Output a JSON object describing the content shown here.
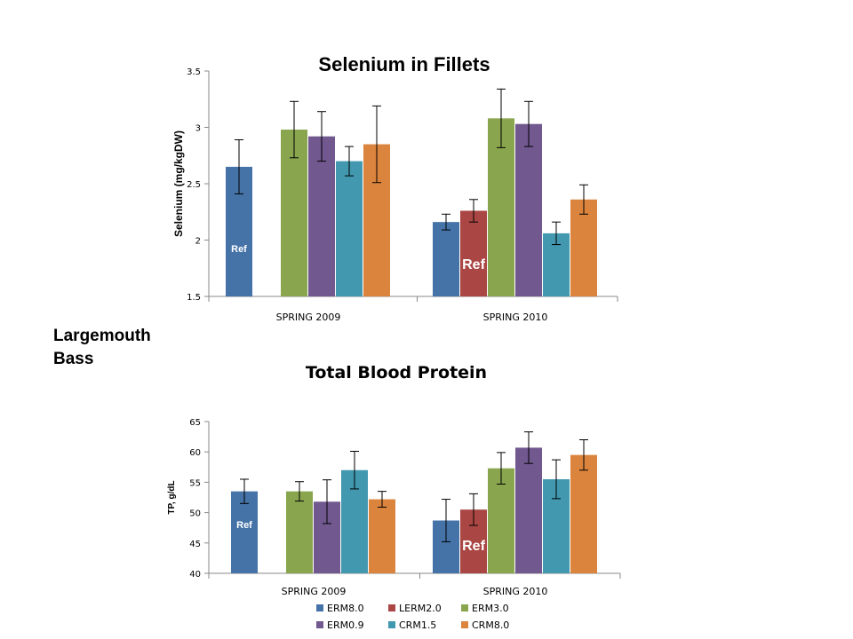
{
  "side_label": {
    "line1": "Largemouth",
    "line2": "Bass"
  },
  "colors": {
    "ERM8.0": "#4572A7",
    "LERM2.0": "#AA4643",
    "ERM3.0": "#89A54E",
    "ERM0.9": "#71588F",
    "CRM1.5": "#4198AF",
    "CRM8.0": "#DB843D"
  },
  "chart_data": [
    {
      "type": "bar",
      "title": "Selenium in Fillets",
      "ylabel": "Selenium  (mg/kgDW)",
      "xlabel": "",
      "categories": [
        "SPRING 2009",
        "SPRING 2010"
      ],
      "ylim": [
        1.5,
        3.5
      ],
      "yticks": [
        "1.5",
        "2",
        "2.5",
        "3",
        "3.5"
      ],
      "grid": false,
      "series": [
        {
          "name": "ERM8.0",
          "values": [
            2.65,
            2.16
          ],
          "err": [
            0.24,
            0.07
          ]
        },
        {
          "name": "LERM2.0",
          "values": [
            null,
            2.26
          ],
          "err": [
            null,
            0.1
          ]
        },
        {
          "name": "ERM3.0",
          "values": [
            2.98,
            3.08
          ],
          "err": [
            0.25,
            0.26
          ]
        },
        {
          "name": "ERM0.9",
          "values": [
            2.92,
            3.03
          ],
          "err": [
            0.22,
            0.2
          ]
        },
        {
          "name": "CRM1.5",
          "values": [
            2.7,
            2.06
          ],
          "err": [
            0.13,
            0.1
          ]
        },
        {
          "name": "CRM8.0",
          "values": [
            2.85,
            2.36
          ],
          "err": [
            0.34,
            0.13
          ]
        }
      ],
      "annotations": [
        {
          "text": "Ref",
          "group": 0,
          "series": 0
        },
        {
          "text": "Ref",
          "group": 1,
          "series": 1
        }
      ]
    },
    {
      "type": "bar",
      "title": "Total Blood Protein",
      "ylabel": "TP, g/dL",
      "xlabel": "",
      "categories": [
        "SPRING 2009",
        "SPRING 2010"
      ],
      "ylim": [
        40,
        65
      ],
      "yticks": [
        "40",
        "45",
        "50",
        "55",
        "60",
        "65"
      ],
      "grid": false,
      "series": [
        {
          "name": "ERM8.0",
          "values": [
            53.5,
            48.7
          ],
          "err": [
            2.0,
            3.5
          ]
        },
        {
          "name": "LERM2.0",
          "values": [
            null,
            50.5
          ],
          "err": [
            null,
            2.6
          ]
        },
        {
          "name": "ERM3.0",
          "values": [
            53.5,
            57.3
          ],
          "err": [
            1.6,
            2.6
          ]
        },
        {
          "name": "ERM0.9",
          "values": [
            51.8,
            60.7
          ],
          "err": [
            3.6,
            2.6
          ]
        },
        {
          "name": "CRM1.5",
          "values": [
            57.0,
            55.5
          ],
          "err": [
            3.1,
            3.2
          ]
        },
        {
          "name": "CRM8.0",
          "values": [
            52.2,
            59.5
          ],
          "err": [
            1.3,
            2.5
          ]
        }
      ],
      "legend": {
        "placement": "bottom",
        "entries": [
          "ERM8.0",
          "LERM2.0",
          "ERM3.0",
          "ERM0.9",
          "CRM1.5",
          "CRM8.0"
        ]
      },
      "annotations": [
        {
          "text": "Ref",
          "group": 0,
          "series": 0
        },
        {
          "text": "Ref",
          "group": 1,
          "series": 1
        }
      ]
    }
  ]
}
